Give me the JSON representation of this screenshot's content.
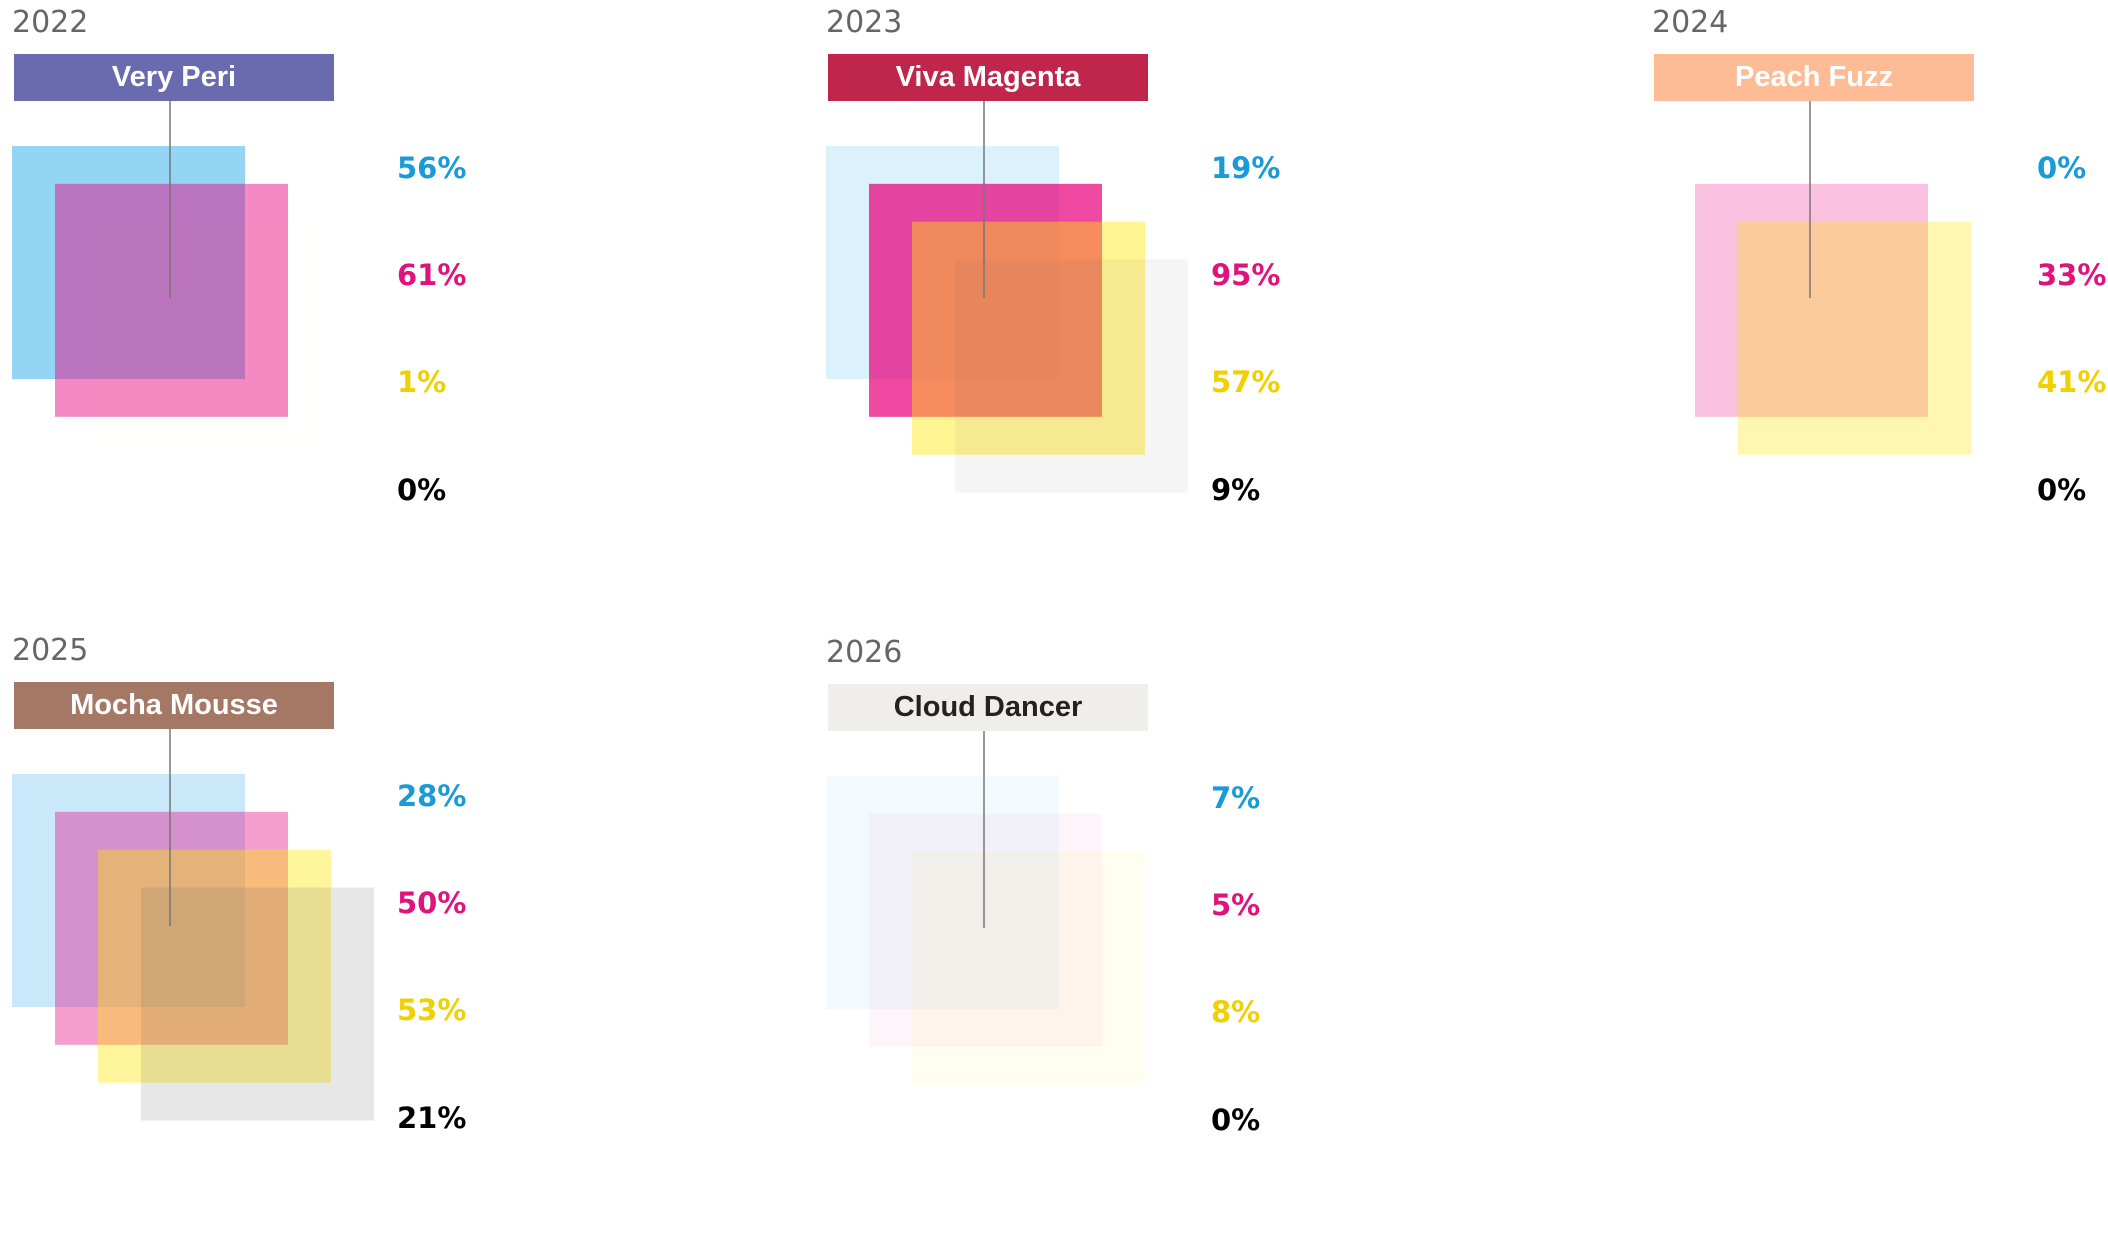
{
  "chart_data": [
    {
      "type": "other",
      "year": "2022",
      "name": "Very Peri",
      "swatch_color": "#6a6aaf",
      "label_color": "#ffffff",
      "cmyk": [
        56,
        61,
        1,
        0
      ],
      "labels": [
        "56%",
        "61%",
        "1%",
        "0%"
      ]
    },
    {
      "type": "other",
      "year": "2023",
      "name": "Viva Magenta",
      "swatch_color": "#c0264b",
      "label_color": "#ffffff",
      "cmyk": [
        19,
        95,
        57,
        9
      ],
      "labels": [
        "19%",
        "95%",
        "57%",
        "9%"
      ]
    },
    {
      "type": "other",
      "year": "2024",
      "name": "Peach Fuzz",
      "swatch_color": "#fdbc96",
      "label_color": "#ffffff",
      "cmyk": [
        0,
        33,
        41,
        0
      ],
      "labels": [
        "0%",
        "33%",
        "41%",
        "0%"
      ]
    },
    {
      "type": "other",
      "year": "2025",
      "name": "Mocha Mousse",
      "swatch_color": "#a47864",
      "label_color": "#ffffff",
      "cmyk": [
        28,
        50,
        53,
        21
      ],
      "labels": [
        "28%",
        "50%",
        "53%",
        "21%"
      ]
    },
    {
      "type": "other",
      "year": "2026",
      "name": "Cloud Dancer",
      "swatch_color": "#efeeea",
      "label_color": "#222222",
      "cmyk": [
        7,
        5,
        8,
        0
      ],
      "labels": [
        "7%",
        "5%",
        "8%",
        "0%"
      ]
    }
  ],
  "ink_colors": {
    "cyan": "#0099e6",
    "magenta": "#e8007d",
    "yellow": "#ffe600",
    "black": "#666666"
  },
  "label_colors": {
    "cyan": "#1a9bd7",
    "magenta": "#e0127c",
    "yellow": "#f0d000",
    "black": "#000000"
  }
}
